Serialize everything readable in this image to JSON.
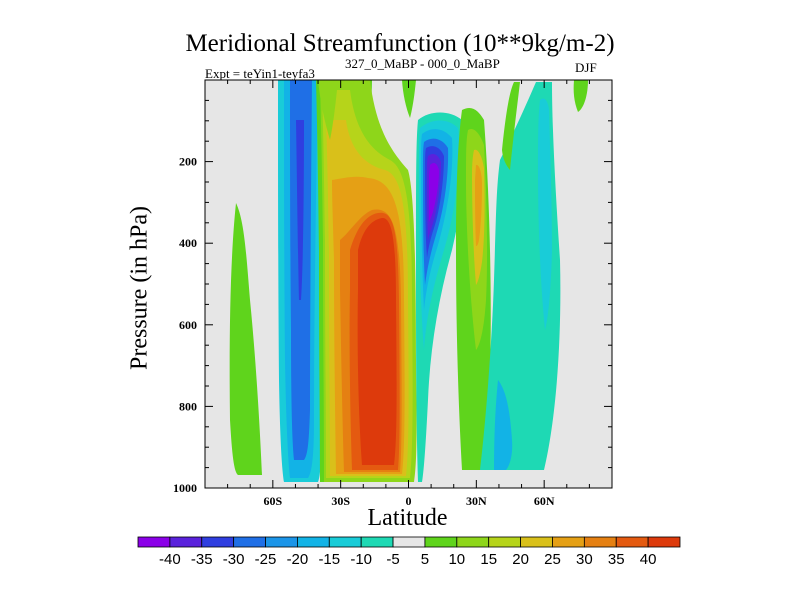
{
  "chart_data": {
    "type": "heatmap",
    "title": "Meridional Streamfunction (10**9kg/m-2)",
    "subtitle_left_base": "Expt = teYin1-teyfa3",
    "subtitle_left_sup": "327_0_MaBP - 000_0_MaBP",
    "subtitle_right": "DJF",
    "xlabel": "Latitude",
    "ylabel": "Pressure (in hPa)",
    "xlim": [
      -90,
      90
    ],
    "ylim": [
      1000,
      0
    ],
    "x_ticks": [
      {
        "value": -60,
        "label": "60S"
      },
      {
        "value": -30,
        "label": "30S"
      },
      {
        "value": 0,
        "label": "0"
      },
      {
        "value": 30,
        "label": "30N"
      },
      {
        "value": 60,
        "label": "60N"
      }
    ],
    "y_ticks": [
      {
        "value": 200,
        "label": "200"
      },
      {
        "value": 400,
        "label": "400"
      },
      {
        "value": 600,
        "label": "600"
      },
      {
        "value": 800,
        "label": "800"
      },
      {
        "value": 1000,
        "label": "1000"
      }
    ],
    "colorbar": {
      "levels": [
        "-40",
        "-35",
        "-30",
        "-25",
        "-20",
        "-15",
        "-10",
        "-5",
        "5",
        "10",
        "15",
        "20",
        "25",
        "30",
        "35",
        "40"
      ],
      "colors": [
        "#8b00e8",
        "#5a22dc",
        "#2f3ee0",
        "#1f6fe6",
        "#1b95e8",
        "#12b3e6",
        "#19ccd8",
        "#1ed9b4",
        "#e6e6e6",
        "#5fd41c",
        "#8ed61a",
        "#b6d41a",
        "#d9c01a",
        "#e5a015",
        "#e58012",
        "#e45a10",
        "#dd3a0c"
      ]
    },
    "fields": [
      {
        "name": "deep-negative-cell",
        "lat_range": [
          -52,
          -38
        ],
        "p_range": [
          5,
          985
        ],
        "peak": -30
      },
      {
        "name": "main-positive-cell",
        "lat_range": [
          -30,
          2
        ],
        "p_range": [
          5,
          990
        ],
        "peak": 45
      },
      {
        "name": "upper-negative-cell",
        "lat_range": [
          3,
          25
        ],
        "p_range": [
          60,
          1000
        ],
        "peak": -40
      },
      {
        "name": "nh-positive-band",
        "lat_range": [
          22,
          40
        ],
        "p_range": [
          10,
          990
        ],
        "peak": 20
      },
      {
        "name": "nh-weak-negative",
        "lat_range": [
          40,
          68
        ],
        "p_range": [
          5,
          975
        ],
        "peak": -10
      },
      {
        "name": "sh-weak-positive",
        "lat_range": [
          -78,
          -70
        ],
        "p_range": [
          290,
          990
        ],
        "peak": 10
      }
    ]
  }
}
